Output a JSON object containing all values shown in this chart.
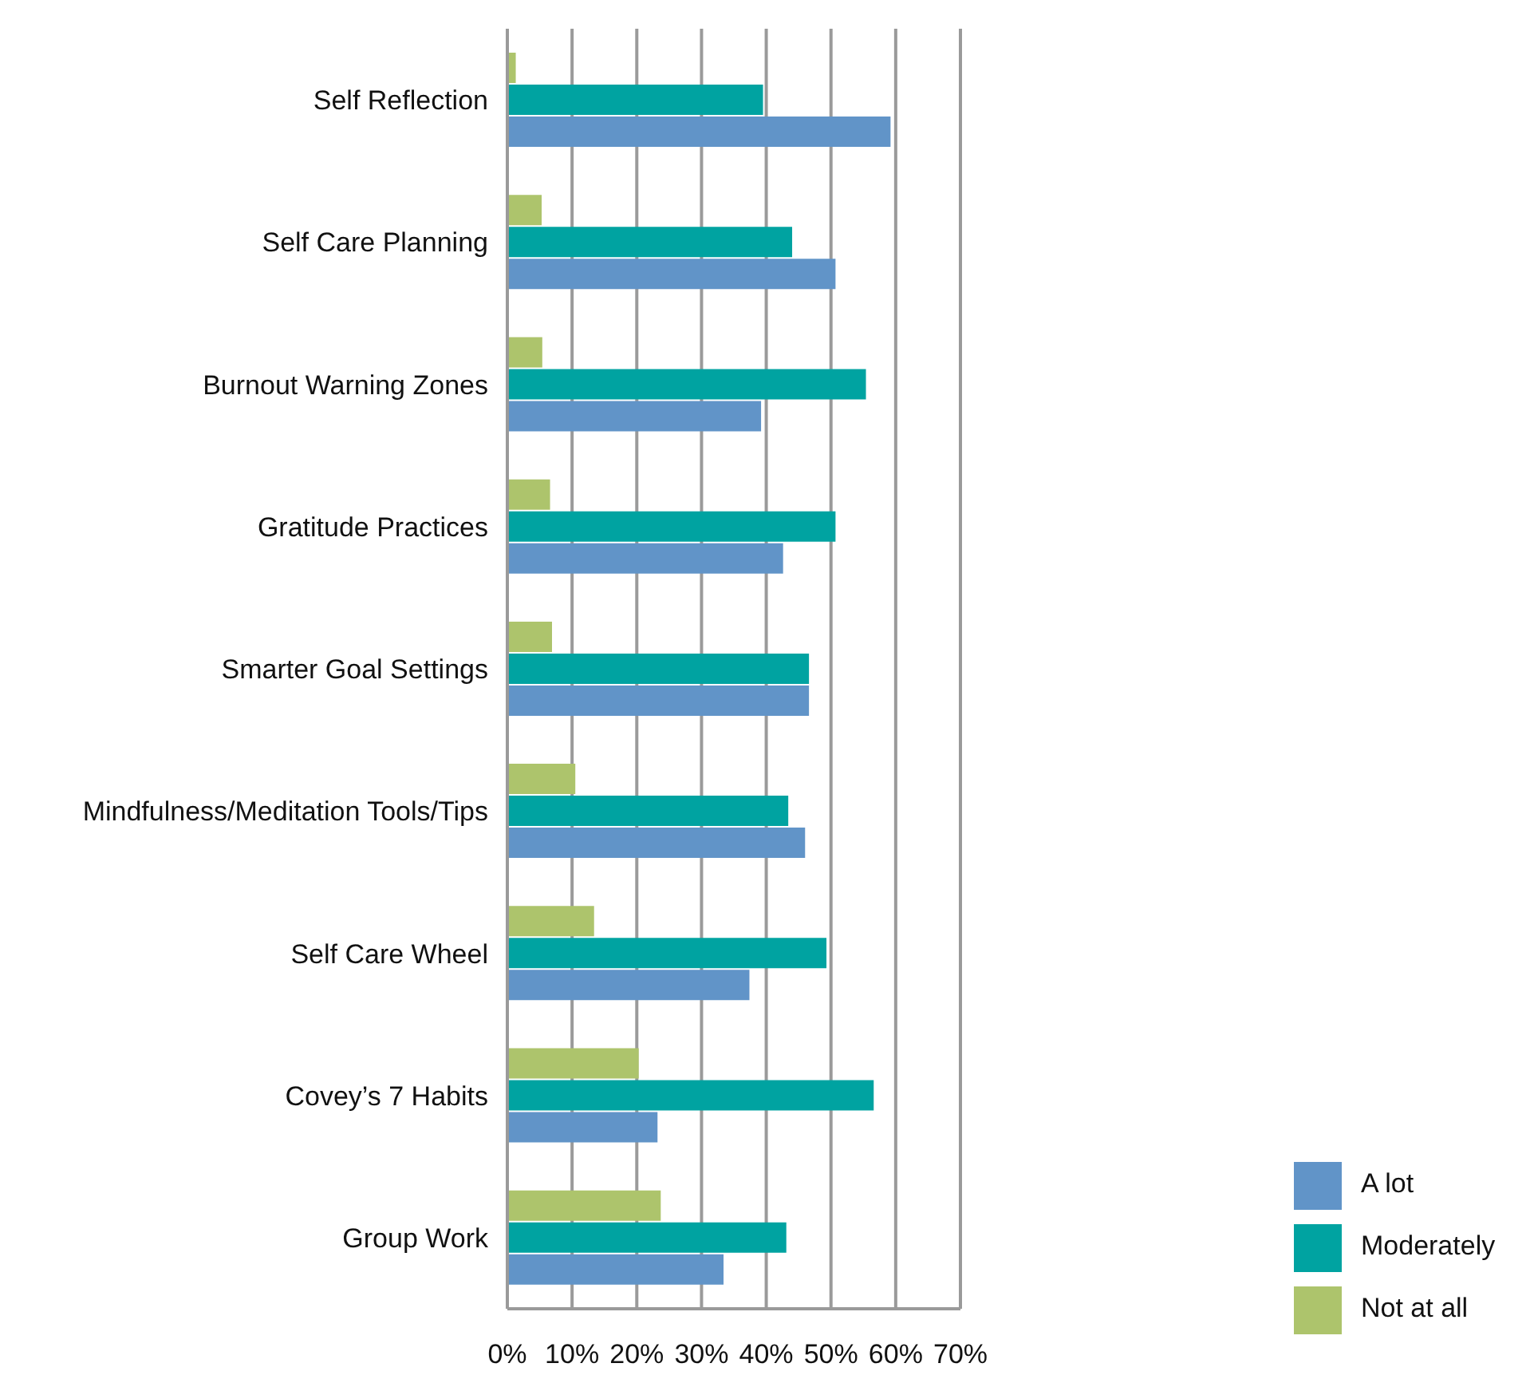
{
  "chart_data": {
    "type": "bar",
    "orientation": "horizontal",
    "categories": [
      "Self Reflection",
      "Self Care Planning",
      "Burnout Warning Zones",
      "Gratitude Practices",
      "Smarter Goal Settings",
      "Mindfulness/Meditation Tools/Tips",
      "Self Care Wheel",
      "Covey’s 7 Habits",
      "Group Work"
    ],
    "series": [
      {
        "name": "Not at all",
        "color": "#adc46c",
        "values": [
          1.3,
          5.3,
          5.4,
          6.6,
          6.9,
          10.5,
          13.4,
          20.3,
          23.7
        ]
      },
      {
        "name": "Moderately",
        "color": "#00a3a1",
        "values": [
          39.5,
          44.0,
          55.4,
          50.7,
          46.6,
          43.4,
          49.3,
          56.6,
          43.1
        ]
      },
      {
        "name": "A lot",
        "color": "#6194c8",
        "values": [
          59.2,
          50.7,
          39.2,
          42.6,
          46.6,
          46.0,
          37.4,
          23.2,
          33.4
        ]
      }
    ],
    "xlim": [
      0,
      70
    ],
    "xticks": [
      {
        "value": 0,
        "label": "0%"
      },
      {
        "value": 10,
        "label": "10%"
      },
      {
        "value": 20,
        "label": "20%"
      },
      {
        "value": 30,
        "label": "30%"
      },
      {
        "value": 40,
        "label": "40%"
      },
      {
        "value": 50,
        "label": "50%"
      },
      {
        "value": 60,
        "label": "60%"
      },
      {
        "value": 70,
        "label": "70%"
      }
    ],
    "grid": "x",
    "legend": "bottom right"
  }
}
